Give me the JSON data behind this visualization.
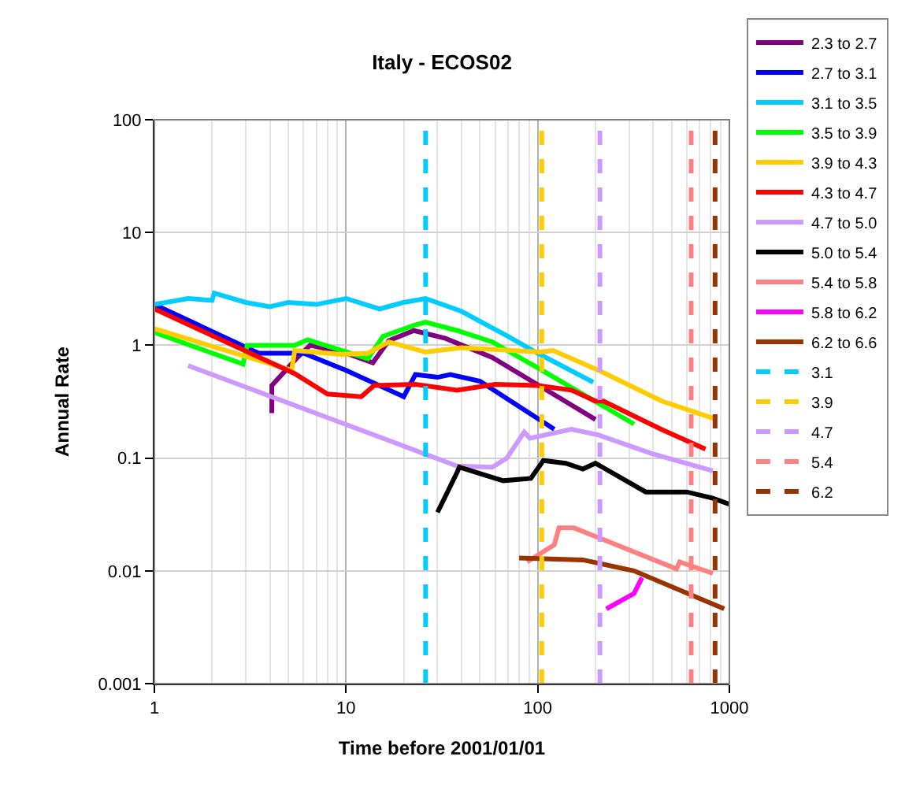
{
  "chart_data": {
    "type": "line",
    "title": "Italy - ECOS02",
    "xlabel": "Time before 2001/01/01",
    "ylabel": "Annual Rate",
    "log": "xy",
    "grid": true,
    "legend": "right",
    "marker": "none",
    "line_style": "solid",
    "xlim": [
      1,
      1000
    ],
    "xticks": [
      1,
      10,
      100,
      1000
    ],
    "ylim": [
      0.001,
      100
    ],
    "yticks": [
      0.001,
      0.01,
      0.1,
      1,
      10,
      100
    ],
    "series": [
      {
        "name": "2.3 to 2.7",
        "color": "#800080",
        "x": [
          4.1,
          4.1,
          5.5,
          6.5,
          10,
          13.8,
          16.7,
          22.6,
          33,
          58,
          200
        ],
        "values": [
          0.25,
          0.44,
          0.76,
          1.0,
          0.85,
          0.7,
          1.1,
          1.35,
          1.15,
          0.78,
          0.22
        ]
      },
      {
        "name": "2.7 to 3.1",
        "color": "#0000ff",
        "x": [
          1,
          3.5,
          6,
          10,
          20,
          23,
          30,
          35,
          50,
          122
        ],
        "values": [
          2.3,
          0.85,
          0.85,
          0.6,
          0.35,
          0.55,
          0.52,
          0.55,
          0.48,
          0.18
        ]
      },
      {
        "name": "3.1 to 3.5",
        "color": "#00ccff",
        "x": [
          1,
          1.5,
          2,
          2.05,
          3,
          4,
          5,
          7,
          10,
          15,
          20,
          26,
          40,
          70,
          100,
          195
        ],
        "values": [
          2.3,
          2.6,
          2.5,
          2.9,
          2.4,
          2.2,
          2.4,
          2.3,
          2.6,
          2.1,
          2.4,
          2.6,
          2.0,
          1.2,
          0.85,
          0.47
        ]
      },
      {
        "name": "3.5 to 3.9",
        "color": "#00ff00",
        "x": [
          1,
          2.9,
          3.05,
          5.4,
          6.3,
          13,
          15.6,
          22.6,
          26,
          38,
          58,
          111,
          318
        ],
        "values": [
          1.3,
          0.68,
          1.0,
          1.0,
          1.12,
          0.76,
          1.2,
          1.5,
          1.6,
          1.35,
          1.07,
          0.57,
          0.2
        ]
      },
      {
        "name": "3.9 to 4.3",
        "color": "#ffcc00",
        "x": [
          1,
          5.2,
          5.4,
          9.5,
          13,
          16.7,
          26,
          40,
          103,
          120,
          208,
          444,
          860
        ],
        "values": [
          1.4,
          0.6,
          0.9,
          0.83,
          0.85,
          1.07,
          0.87,
          0.95,
          0.87,
          0.9,
          0.6,
          0.32,
          0.22
        ]
      },
      {
        "name": "4.3 to 4.7",
        "color": "#ff0000",
        "x": [
          1,
          5.4,
          8,
          12,
          14,
          23,
          38,
          60,
          100,
          150,
          200,
          220,
          440,
          750
        ],
        "values": [
          2.1,
          0.56,
          0.37,
          0.35,
          0.44,
          0.45,
          0.4,
          0.45,
          0.44,
          0.4,
          0.32,
          0.32,
          0.18,
          0.12
        ]
      },
      {
        "name": "4.7 to 5.0",
        "color": "#cc99ff",
        "x": [
          1.5,
          38,
          58,
          69,
          85,
          91,
          150,
          208,
          390,
          820
        ],
        "values": [
          0.66,
          0.085,
          0.083,
          0.1,
          0.17,
          0.15,
          0.18,
          0.16,
          0.11,
          0.077
        ]
      },
      {
        "name": "5.0 to 5.4",
        "color": "#000000",
        "x": [
          30,
          38,
          39,
          66,
          92,
          107,
          140,
          172,
          200,
          366,
          600,
          820,
          1000
        ],
        "values": [
          0.033,
          0.075,
          0.083,
          0.063,
          0.066,
          0.095,
          0.09,
          0.08,
          0.09,
          0.05,
          0.05,
          0.044,
          0.039
        ]
      },
      {
        "name": "5.4 to 5.8",
        "color": "#ff8080",
        "x": [
          88,
          122,
          129,
          155,
          530,
          550,
          820
        ],
        "values": [
          0.012,
          0.017,
          0.024,
          0.024,
          0.0104,
          0.012,
          0.0095
        ]
      },
      {
        "name": "5.8 to 6.2",
        "color": "#ff00ff",
        "x": [
          228,
          318,
          350
        ],
        "values": [
          0.0046,
          0.0063,
          0.0087
        ]
      },
      {
        "name": "6.2 to 6.6",
        "color": "#993300",
        "x": [
          80,
          172,
          318,
          940
        ],
        "values": [
          0.013,
          0.0125,
          0.01,
          0.0046
        ]
      },
      {
        "name": "3.1",
        "color": "#00ccff",
        "line_style": "dashed",
        "x": [
          26,
          26
        ],
        "values": [
          0.001,
          100
        ]
      },
      {
        "name": "3.9",
        "color": "#ffcc00",
        "line_style": "dashed",
        "x": [
          105,
          105
        ],
        "values": [
          0.001,
          100
        ]
      },
      {
        "name": "4.7",
        "color": "#cc99ff",
        "line_style": "dashed",
        "x": [
          211,
          211
        ],
        "values": [
          0.001,
          100
        ]
      },
      {
        "name": "5.4",
        "color": "#ff8080",
        "line_style": "dashed",
        "x": [
          632,
          632
        ],
        "values": [
          0.001,
          100
        ]
      },
      {
        "name": "6.2",
        "color": "#993300",
        "line_style": "dashed",
        "x": [
          842,
          842
        ],
        "values": [
          0.001,
          100
        ]
      }
    ]
  }
}
